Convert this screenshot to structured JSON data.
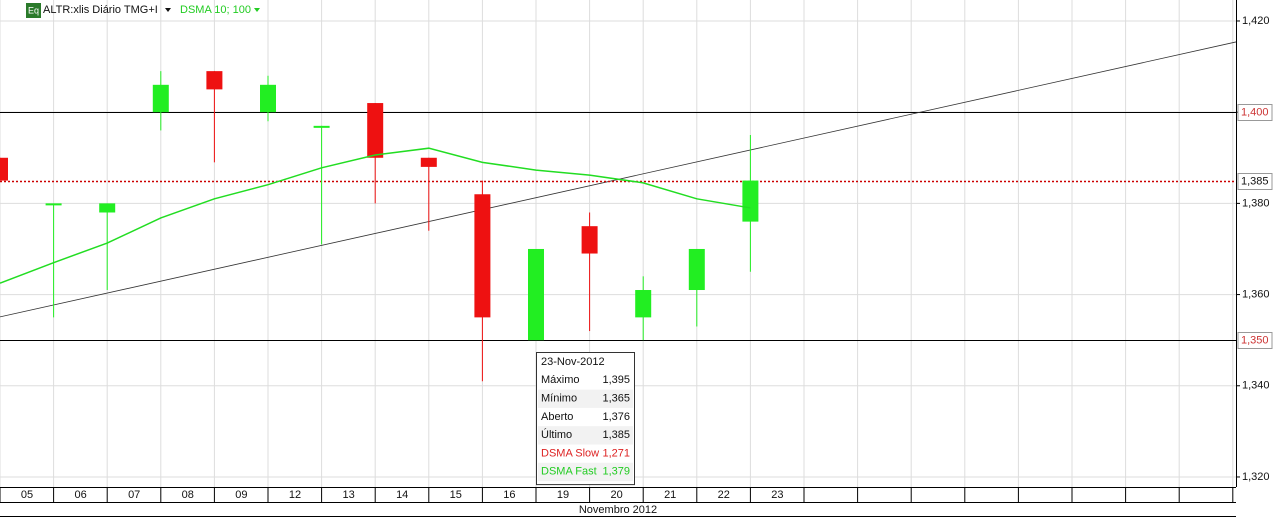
{
  "chart_data": {
    "type": "candlestick",
    "symbol_badge": "Eq",
    "title": "ALTR:xlis Diário TMG+I",
    "indicator": "DSMA 10; 100",
    "x_axis_label": "Novembro 2012",
    "categories": [
      "05",
      "06",
      "07",
      "08",
      "09",
      "12",
      "13",
      "14",
      "15",
      "16",
      "19",
      "20",
      "21",
      "22",
      "23"
    ],
    "open": [
      1390,
      1380,
      1378,
      1400,
      1409,
      1400,
      1397,
      1402,
      1390,
      1382,
      1350,
      1375,
      1355,
      1361,
      1376
    ],
    "high": [
      1390,
      1380,
      1380,
      1409,
      1409,
      1408,
      1397,
      1402,
      1390,
      1385,
      1370,
      1378,
      1364,
      1370,
      1395
    ],
    "low": [
      1385,
      1355,
      1361,
      1396,
      1389,
      1398,
      1371,
      1380,
      1374,
      1341,
      1350,
      1352,
      1350,
      1353,
      1365
    ],
    "close": [
      1385,
      1380,
      1380,
      1406,
      1405,
      1406,
      1397,
      1390,
      1388,
      1355,
      1370,
      1369,
      1361,
      1370,
      1385
    ],
    "up_color": "#22ee22",
    "down_color": "#ee1111",
    "lines": [
      {
        "color": "#22dd22",
        "values": [
          1362.5,
          1367,
          1371.3,
          1376.8,
          1381,
          1384.1,
          1387.8,
          1390.6,
          1392.1,
          1389,
          1387.3,
          1386.2,
          1384.5,
          1381,
          1379
        ]
      }
    ],
    "trendline": {
      "start": 1355.1,
      "end": 1415.4,
      "color": "#333333"
    },
    "hlines": [
      {
        "value": 1400,
        "label": "1,400"
      },
      {
        "value": 1350,
        "label": "1,350"
      }
    ],
    "last_price": {
      "value": 1385,
      "label": "1,385",
      "color": "#cc0000"
    },
    "ylim": [
      1317.8,
      1424.6
    ],
    "yticks": [
      {
        "value": 1320,
        "label": "1,320"
      },
      {
        "value": 1340,
        "label": "1,340"
      },
      {
        "value": 1360,
        "label": "1,360"
      },
      {
        "value": 1380,
        "label": "1,380"
      },
      {
        "value": 1400,
        "label": "1,400"
      },
      {
        "value": 1420,
        "label": "1,420"
      }
    ],
    "grid": true,
    "tooltip": {
      "title": "23-Nov-2012",
      "rows": [
        {
          "label": "Máximo",
          "value": "1,395"
        },
        {
          "label": "Mínimo",
          "value": "1,365"
        },
        {
          "label": "Aberto",
          "value": "1,376"
        },
        {
          "label": "Último",
          "value": "1,385"
        },
        {
          "label": "DSMA Slow",
          "value": "1,271",
          "color": "#dd2222"
        },
        {
          "label": "DSMA Fast",
          "value": "1,379",
          "color": "#22cc22"
        }
      ]
    }
  }
}
